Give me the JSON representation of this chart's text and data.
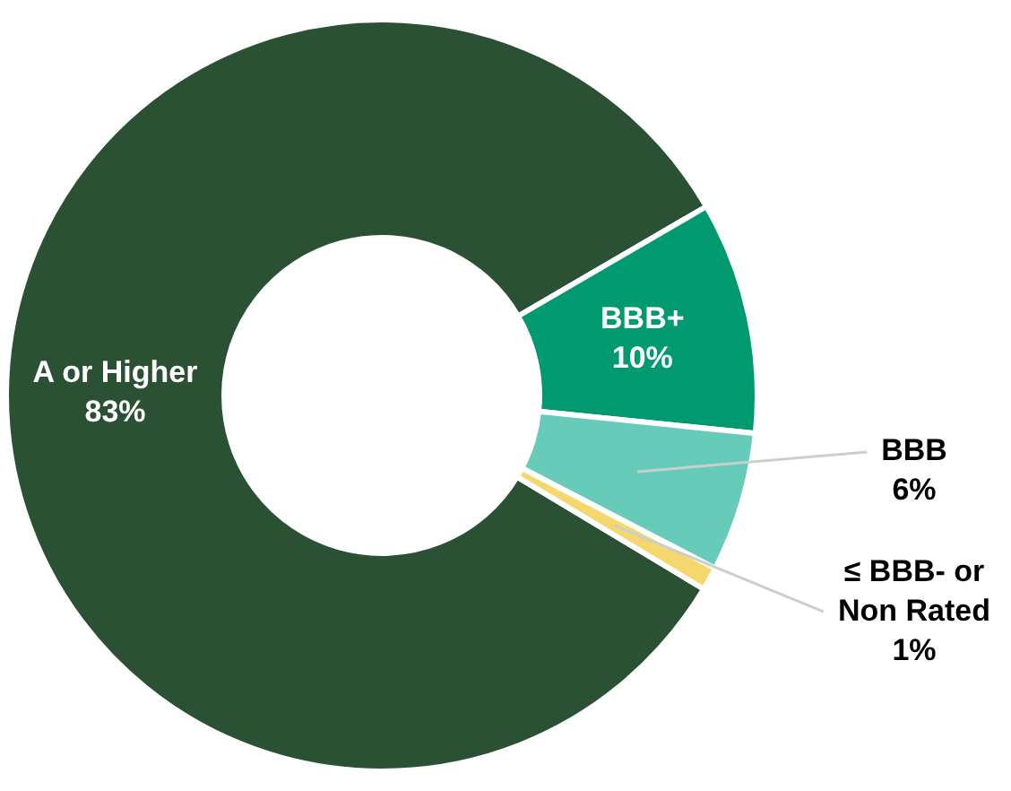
{
  "chart_data": {
    "type": "donut",
    "categories": [
      "A or Higher",
      "BBB+",
      "BBB",
      "≤ BBB- or Non Rated"
    ],
    "values": [
      83,
      10,
      6,
      1
    ],
    "colors": [
      "#2b5135",
      "#009970",
      "#66cbb9",
      "#f5d76e"
    ],
    "value_labels": [
      "83%",
      "10%",
      "6%",
      "1%"
    ],
    "legend": false
  }
}
